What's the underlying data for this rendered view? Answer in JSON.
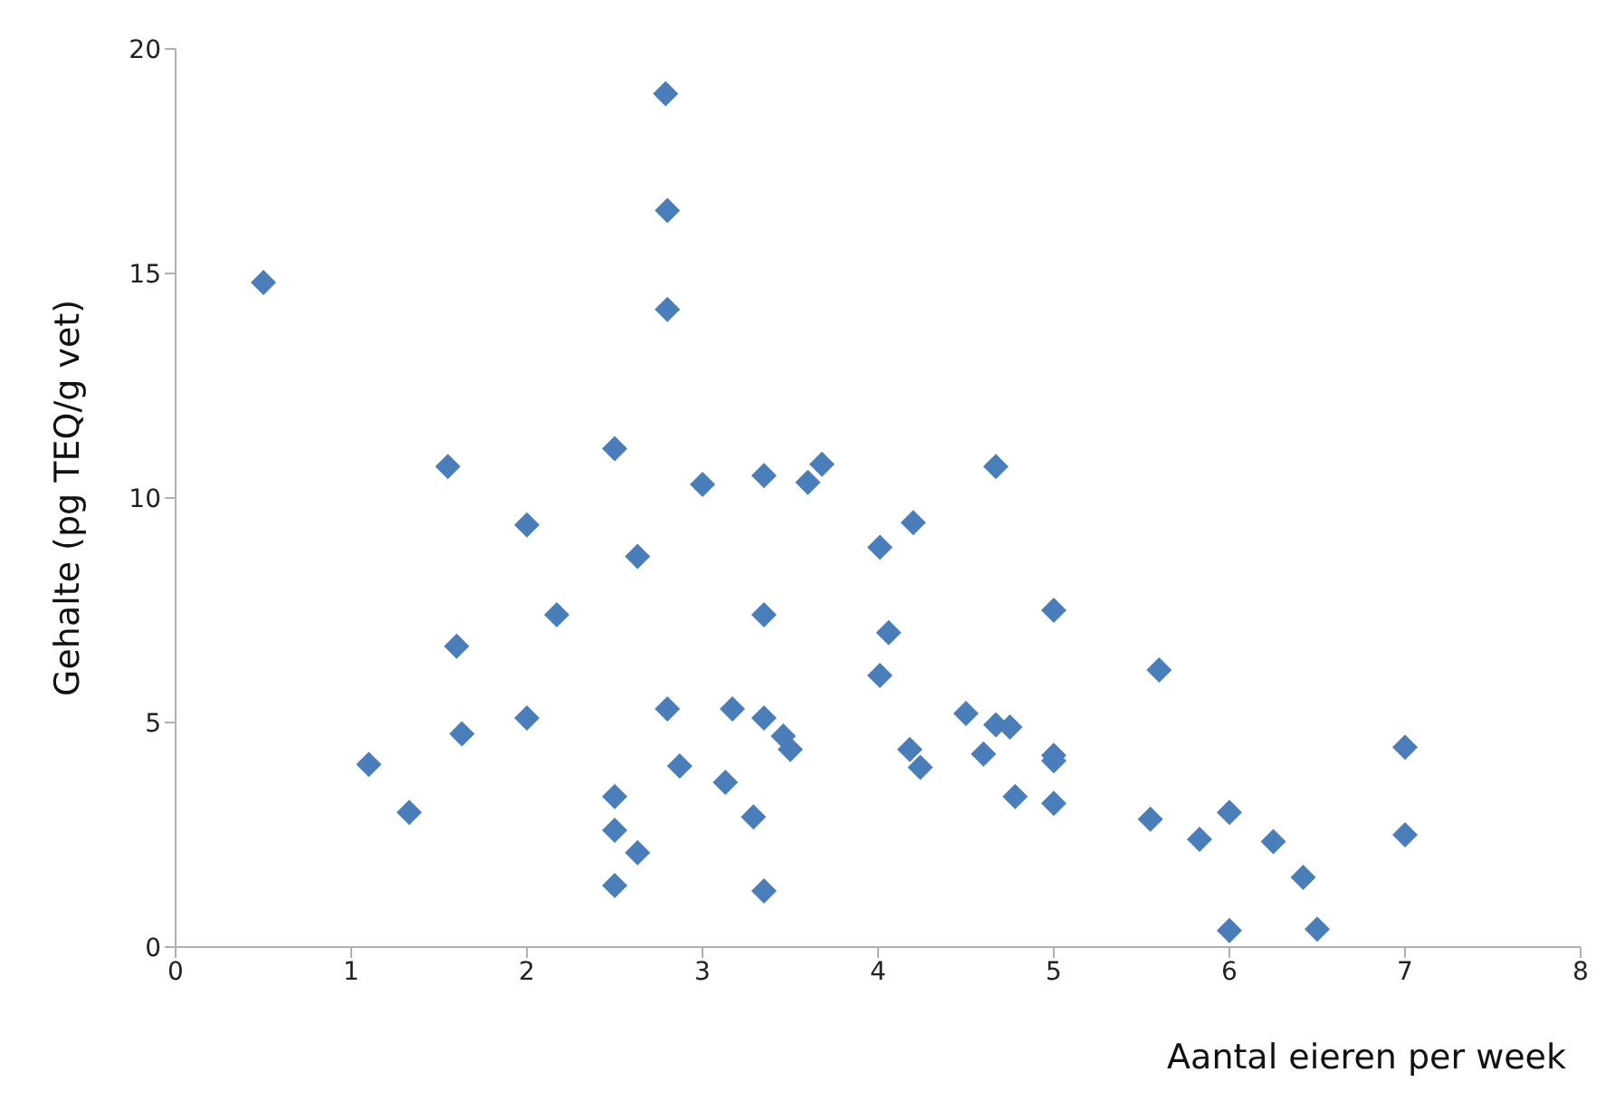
{
  "chart_data": {
    "type": "scatter",
    "xlabel": "Aantal eieren per week",
    "ylabel": "Gehalte (pg TEQ/g vet)",
    "xlim": [
      0,
      8
    ],
    "xticks": [
      0,
      1,
      2,
      3,
      4,
      5,
      6,
      7,
      8
    ],
    "ylim": [
      0,
      20
    ],
    "yticks": [
      0,
      5,
      10,
      15,
      20
    ],
    "marker": "diamond",
    "series": [
      {
        "color": "#4a7ebb",
        "x": [
          0.5,
          1.1,
          1.33,
          1.55,
          1.6,
          1.63,
          2.0,
          2.0,
          2.17,
          2.5,
          2.5,
          2.5,
          2.5,
          2.63,
          2.63,
          2.79,
          2.8,
          2.8,
          2.8,
          2.87,
          3.0,
          3.13,
          3.17,
          3.29,
          3.35,
          3.35,
          3.35,
          3.35,
          3.46,
          3.5,
          3.6,
          3.68,
          4.01,
          4.01,
          4.06,
          4.18,
          4.2,
          4.24,
          4.5,
          4.6,
          4.67,
          4.67,
          4.75,
          4.78,
          5.0,
          5.0,
          5.0,
          5.0,
          5.6,
          5.55,
          5.83,
          6.0,
          6.0,
          6.25,
          6.42,
          6.5,
          7.0,
          7.0
        ],
        "values": [
          14.8,
          4.07,
          3.0,
          10.7,
          6.7,
          4.75,
          9.4,
          5.1,
          7.4,
          11.1,
          3.35,
          2.6,
          1.37,
          2.1,
          8.7,
          19.0,
          16.4,
          14.2,
          5.3,
          4.03,
          10.3,
          3.67,
          5.3,
          2.9,
          10.5,
          7.4,
          5.1,
          1.25,
          4.7,
          4.4,
          10.35,
          10.75,
          8.9,
          6.05,
          7.0,
          4.4,
          9.45,
          4.0,
          5.2,
          4.3,
          10.7,
          4.95,
          4.9,
          3.35,
          7.5,
          4.27,
          4.15,
          3.2,
          6.17,
          2.85,
          2.4,
          3.0,
          0.37,
          2.35,
          1.55,
          0.4,
          4.45,
          2.5
        ]
      }
    ]
  }
}
